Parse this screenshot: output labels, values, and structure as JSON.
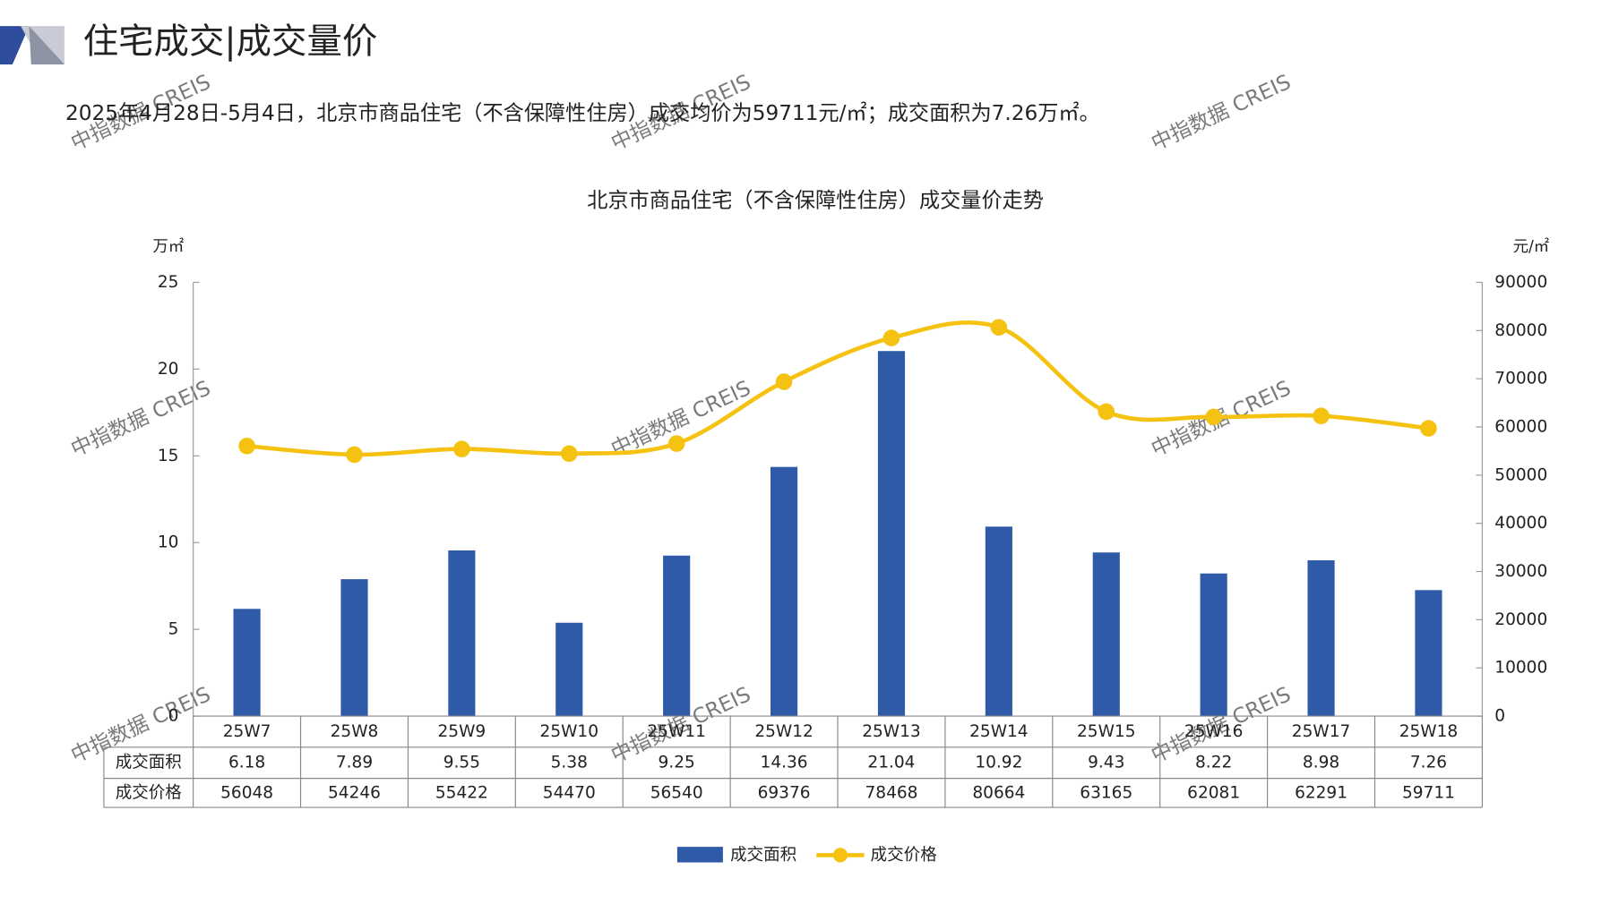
{
  "header": {
    "title": "住宅成交|成交量价"
  },
  "summary": "2025年4月28日-5月4日，北京市商品住宅（不含保障性住房）成交均价为59711元/㎡；成交面积为7.26万㎡。",
  "watermark": "中指数据 CREIS",
  "chart_data": {
    "type": "bar",
    "title": "北京市商品住宅（不含保障性住房）成交量价走势",
    "y_label": "万㎡",
    "y2_label": "元/㎡",
    "categories": [
      "25W7",
      "25W8",
      "25W9",
      "25W10",
      "25W11",
      "25W12",
      "25W13",
      "25W14",
      "25W15",
      "25W16",
      "25W17",
      "25W18"
    ],
    "series": [
      {
        "name": "成交面积",
        "type": "bar",
        "color": "#2e5aa8",
        "values": [
          6.18,
          7.89,
          9.55,
          5.38,
          9.25,
          14.36,
          21.04,
          10.92,
          9.43,
          8.22,
          8.98,
          7.26
        ]
      },
      {
        "name": "成交价格",
        "type": "line",
        "axis": "y2",
        "color": "#f5c211",
        "values": [
          56048,
          54246,
          55422,
          54470,
          56540,
          69376,
          78468,
          80664,
          63165,
          62081,
          62291,
          59711
        ]
      }
    ],
    "ylim": [
      0,
      25
    ],
    "yticks": [
      0,
      5,
      10,
      15,
      20,
      25
    ],
    "y2lim": [
      0,
      90000
    ],
    "y2ticks": [
      0,
      10000,
      20000,
      30000,
      40000,
      50000,
      60000,
      70000,
      80000,
      90000
    ],
    "legend": "bottom"
  }
}
